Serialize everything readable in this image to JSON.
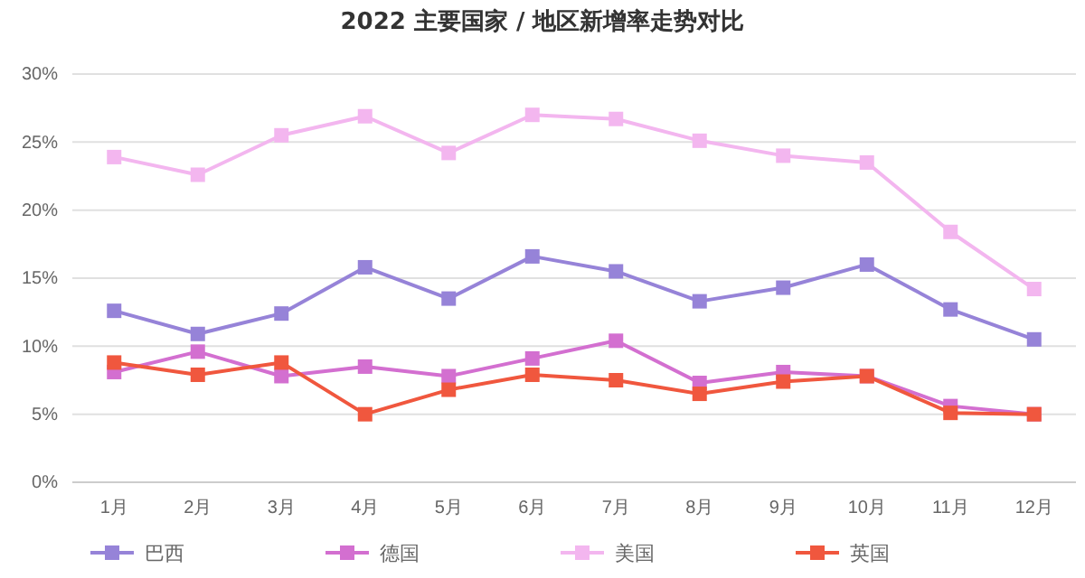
{
  "chart_data": {
    "type": "line",
    "title": "2022 主要国家 / 地区新增率走势对比",
    "categories": [
      "1月",
      "2月",
      "3月",
      "4月",
      "5月",
      "6月",
      "7月",
      "8月",
      "9月",
      "10月",
      "11月",
      "12月"
    ],
    "series": [
      {
        "name": "巴西",
        "color": "#9683d8",
        "values": [
          12.6,
          10.9,
          12.4,
          15.8,
          13.5,
          16.6,
          15.5,
          13.3,
          14.3,
          16.0,
          12.7,
          10.5
        ]
      },
      {
        "name": "德国",
        "color": "#d36fd0",
        "values": [
          8.1,
          9.6,
          7.8,
          8.5,
          7.8,
          9.1,
          10.4,
          7.3,
          8.1,
          7.8,
          5.6,
          5.0
        ]
      },
      {
        "name": "美国",
        "color": "#f3b6ef",
        "values": [
          23.9,
          22.6,
          25.5,
          26.9,
          24.2,
          27.0,
          26.7,
          25.1,
          24.0,
          23.5,
          18.4,
          14.2
        ]
      },
      {
        "name": "英国",
        "color": "#f0573e",
        "values": [
          8.8,
          7.9,
          8.8,
          5.0,
          6.8,
          7.9,
          7.5,
          6.5,
          7.4,
          7.8,
          5.1,
          5.0
        ]
      }
    ],
    "ylim": [
      0,
      30
    ],
    "yticks": [
      {
        "value": 0,
        "label": "0%"
      },
      {
        "value": 5,
        "label": "5%"
      },
      {
        "value": 10,
        "label": "10%"
      },
      {
        "value": 15,
        "label": "15%"
      },
      {
        "value": 20,
        "label": "20%"
      },
      {
        "value": 25,
        "label": "25%"
      },
      {
        "value": 30,
        "label": "30%"
      }
    ],
    "grid": "y",
    "legend": "bottom",
    "marker": "square",
    "line_style": "solid"
  }
}
